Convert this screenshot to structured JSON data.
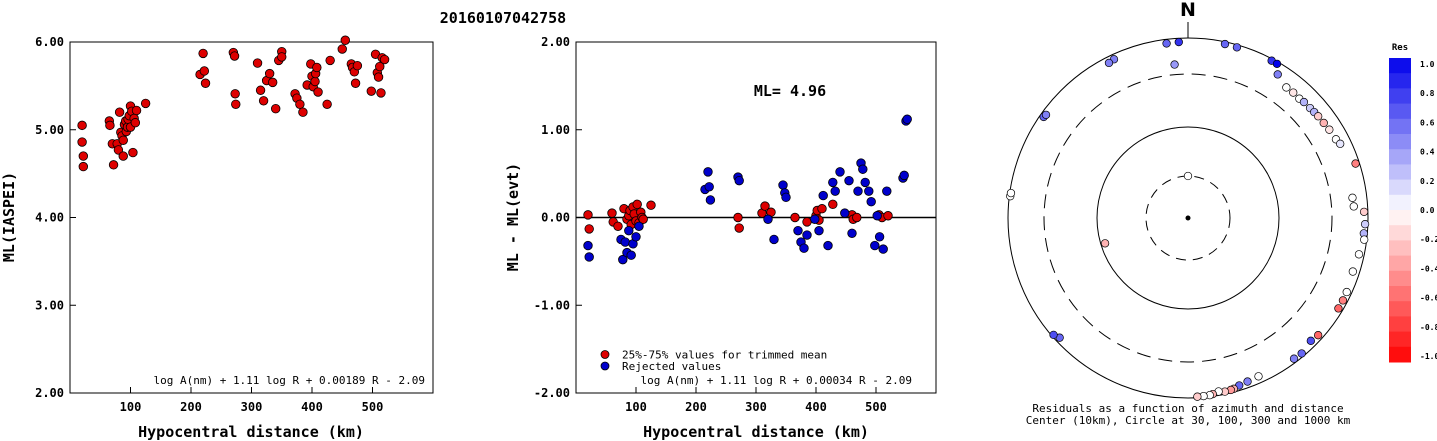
{
  "title": "20160107042758",
  "colors": {
    "inlier": "#dd0000",
    "rejected": "#0000cc",
    "axis": "#000000"
  },
  "chart_data": [
    {
      "type": "scatter",
      "xlabel": "Hypocentral distance (km)",
      "ylabel": "ML(IASPEI)",
      "xlim": [
        0,
        600
      ],
      "ylim": [
        2.0,
        6.0
      ],
      "xticks": [
        "100",
        "200",
        "300",
        "400",
        "500"
      ],
      "yticks": [
        "2.00",
        "3.00",
        "4.00",
        "5.00",
        "6.00"
      ],
      "formula": "log A(nm) + 1.11 log R + 0.00189 R - 2.09",
      "series": [
        {
          "points": [
            [
              20,
              5.05
            ],
            [
              20,
              4.86
            ],
            [
              22,
              4.7
            ],
            [
              22,
              4.58
            ],
            [
              65,
              5.1
            ],
            [
              66,
              5.05
            ],
            [
              70,
              4.84
            ],
            [
              72,
              4.6
            ],
            [
              78,
              4.84
            ],
            [
              80,
              4.77
            ],
            [
              82,
              5.2
            ],
            [
              84,
              4.97
            ],
            [
              86,
              4.93
            ],
            [
              88,
              4.88
            ],
            [
              88,
              4.7
            ],
            [
              90,
              5.06
            ],
            [
              92,
              5.1
            ],
            [
              93,
              4.98
            ],
            [
              95,
              5.03
            ],
            [
              96,
              5.12
            ],
            [
              98,
              5.16
            ],
            [
              100,
              5.27
            ],
            [
              100,
              5.03
            ],
            [
              102,
              5.21
            ],
            [
              104,
              4.74
            ],
            [
              106,
              5.13
            ],
            [
              108,
              5.08
            ],
            [
              110,
              5.22
            ],
            [
              125,
              5.3
            ],
            [
              215,
              5.63
            ],
            [
              220,
              5.87
            ],
            [
              222,
              5.67
            ],
            [
              224,
              5.53
            ],
            [
              270,
              5.88
            ],
            [
              272,
              5.84
            ],
            [
              273,
              5.41
            ],
            [
              274,
              5.29
            ],
            [
              310,
              5.76
            ],
            [
              315,
              5.45
            ],
            [
              320,
              5.33
            ],
            [
              325,
              5.56
            ],
            [
              330,
              5.64
            ],
            [
              335,
              5.54
            ],
            [
              340,
              5.24
            ],
            [
              345,
              5.79
            ],
            [
              350,
              5.89
            ],
            [
              350,
              5.83
            ],
            [
              372,
              5.41
            ],
            [
              375,
              5.36
            ],
            [
              380,
              5.29
            ],
            [
              385,
              5.2
            ],
            [
              392,
              5.51
            ],
            [
              398,
              5.75
            ],
            [
              400,
              5.61
            ],
            [
              402,
              5.49
            ],
            [
              405,
              5.55
            ],
            [
              406,
              5.64
            ],
            [
              408,
              5.71
            ],
            [
              410,
              5.43
            ],
            [
              425,
              5.29
            ],
            [
              430,
              5.79
            ],
            [
              450,
              5.92
            ],
            [
              455,
              6.02
            ],
            [
              465,
              5.75
            ],
            [
              467,
              5.71
            ],
            [
              470,
              5.66
            ],
            [
              472,
              5.53
            ],
            [
              475,
              5.73
            ],
            [
              498,
              5.44
            ],
            [
              505,
              5.86
            ],
            [
              508,
              5.65
            ],
            [
              510,
              5.6
            ],
            [
              512,
              5.72
            ],
            [
              514,
              5.42
            ],
            [
              516,
              5.82
            ],
            [
              520,
              5.8
            ]
          ]
        }
      ]
    },
    {
      "type": "scatter",
      "xlabel": "Hypocentral distance (km)",
      "ylabel": "ML - ML(evt)",
      "xlim": [
        0,
        600
      ],
      "ylim": [
        -2.0,
        2.0
      ],
      "xticks": [
        "100",
        "200",
        "300",
        "400",
        "500"
      ],
      "yticks": [
        "-2.00",
        "-1.00",
        "0.00",
        "1.00",
        "2.00"
      ],
      "annotation": "ML= 4.96",
      "formula": "log A(nm) + 1.11 log R + 0.00034 R - 2.09",
      "series": [
        {
          "name": "25%-75% values for trimmed mean",
          "points": [
            [
              20,
              0.03
            ],
            [
              22,
              -0.13
            ],
            [
              60,
              0.05
            ],
            [
              62,
              -0.05
            ],
            [
              70,
              -0.1
            ],
            [
              80,
              0.1
            ],
            [
              85,
              -0.02
            ],
            [
              88,
              0.02
            ],
            [
              90,
              0.08
            ],
            [
              92,
              -0.08
            ],
            [
              95,
              0.12
            ],
            [
              97,
              0.04
            ],
            [
              100,
              -0.04
            ],
            [
              102,
              0.15
            ],
            [
              105,
              -0.06
            ],
            [
              108,
              0.06
            ],
            [
              110,
              0.0
            ],
            [
              112,
              -0.02
            ],
            [
              125,
              0.14
            ],
            [
              270,
              0.0
            ],
            [
              272,
              -0.12
            ],
            [
              310,
              0.05
            ],
            [
              315,
              0.13
            ],
            [
              325,
              0.06
            ],
            [
              365,
              0.0
            ],
            [
              385,
              -0.05
            ],
            [
              400,
              0.02
            ],
            [
              402,
              0.08
            ],
            [
              405,
              -0.03
            ],
            [
              410,
              0.1
            ],
            [
              428,
              0.15
            ],
            [
              460,
              0.03
            ],
            [
              462,
              -0.02
            ],
            [
              468,
              0.0
            ],
            [
              505,
              0.03
            ],
            [
              510,
              0.0
            ],
            [
              520,
              0.02
            ]
          ]
        },
        {
          "name": "Rejected values",
          "points": [
            [
              20,
              -0.32
            ],
            [
              22,
              -0.45
            ],
            [
              75,
              -0.25
            ],
            [
              78,
              -0.48
            ],
            [
              82,
              -0.28
            ],
            [
              85,
              -0.4
            ],
            [
              88,
              -0.15
            ],
            [
              92,
              -0.43
            ],
            [
              95,
              -0.3
            ],
            [
              100,
              -0.22
            ],
            [
              105,
              -0.1
            ],
            [
              215,
              0.32
            ],
            [
              220,
              0.52
            ],
            [
              222,
              0.35
            ],
            [
              224,
              0.2
            ],
            [
              270,
              0.46
            ],
            [
              272,
              0.42
            ],
            [
              320,
              -0.02
            ],
            [
              330,
              -0.25
            ],
            [
              345,
              0.37
            ],
            [
              348,
              0.28
            ],
            [
              350,
              0.23
            ],
            [
              370,
              -0.15
            ],
            [
              375,
              -0.28
            ],
            [
              380,
              -0.35
            ],
            [
              385,
              -0.2
            ],
            [
              398,
              -0.02
            ],
            [
              405,
              -0.15
            ],
            [
              412,
              0.25
            ],
            [
              420,
              -0.32
            ],
            [
              428,
              0.4
            ],
            [
              432,
              0.3
            ],
            [
              440,
              0.52
            ],
            [
              448,
              0.05
            ],
            [
              455,
              0.42
            ],
            [
              460,
              -0.18
            ],
            [
              470,
              0.3
            ],
            [
              475,
              0.62
            ],
            [
              478,
              0.55
            ],
            [
              482,
              0.4
            ],
            [
              488,
              0.3
            ],
            [
              492,
              0.18
            ],
            [
              498,
              -0.32
            ],
            [
              502,
              0.02
            ],
            [
              506,
              -0.22
            ],
            [
              512,
              -0.36
            ],
            [
              518,
              0.3
            ],
            [
              545,
              0.45
            ],
            [
              547,
              0.48
            ],
            [
              550,
              1.1
            ],
            [
              552,
              1.12
            ]
          ]
        }
      ]
    }
  ],
  "polar": {
    "north_label": "N",
    "caption_line1": "Residuals as a function of azimuth and distance",
    "caption_line2": "Center (10km), Circle at 30, 100, 300 and 1000 km",
    "rings_km": [
      30,
      100,
      300,
      1000
    ],
    "stations": [
      {
        "az": 12,
        "dist_km": 930,
        "res": 0.6
      },
      {
        "az": 16,
        "dist_km": 920,
        "res": 0.6
      },
      {
        "az": 28,
        "dist_km": 940,
        "res": 0.8
      },
      {
        "az": 30,
        "dist_km": 935,
        "res": 1.0
      },
      {
        "az": 353,
        "dist_km": 870,
        "res": 0.6
      },
      {
        "az": 357,
        "dist_km": 880,
        "res": 0.8
      },
      {
        "az": 335,
        "dist_km": 850,
        "res": 0.5
      },
      {
        "az": 333,
        "dist_km": 820,
        "res": 0.5
      },
      {
        "az": 305,
        "dist_km": 880,
        "res": 0.6
      },
      {
        "az": 306,
        "dist_km": 860,
        "res": 0.5
      },
      {
        "az": 355,
        "dist_km": 420,
        "res": 0.4
      },
      {
        "az": 32,
        "dist_km": 700,
        "res": 0.5
      },
      {
        "az": 37,
        "dist_km": 575,
        "res": 0.0
      },
      {
        "az": 40,
        "dist_km": 580,
        "res": -0.1
      },
      {
        "az": 43,
        "dist_km": 570,
        "res": 0.0
      },
      {
        "az": 45,
        "dist_km": 585,
        "res": 0.3
      },
      {
        "az": 48,
        "dist_km": 590,
        "res": 0.2
      },
      {
        "az": 50,
        "dist_km": 600,
        "res": 0.3
      },
      {
        "az": 52,
        "dist_km": 610,
        "res": -0.2
      },
      {
        "az": 55,
        "dist_km": 620,
        "res": -0.3
      },
      {
        "az": 58,
        "dist_km": 640,
        "res": -0.1
      },
      {
        "az": 62,
        "dist_km": 660,
        "res": 0.0
      },
      {
        "az": 64,
        "dist_km": 700,
        "res": 0.1
      },
      {
        "az": 72,
        "dist_km": 880,
        "res": -0.5
      },
      {
        "az": 83,
        "dist_km": 620,
        "res": 0.0
      },
      {
        "az": 86,
        "dist_km": 630,
        "res": 0.0
      },
      {
        "az": 88,
        "dist_km": 880,
        "res": -0.2
      },
      {
        "az": 92,
        "dist_km": 910,
        "res": 0.2
      },
      {
        "az": 95,
        "dist_km": 890,
        "res": 0.3
      },
      {
        "az": 97,
        "dist_km": 920,
        "res": 0.0
      },
      {
        "az": 102,
        "dist_km": 840,
        "res": 0.0
      },
      {
        "az": 108,
        "dist_km": 800,
        "res": 0.0
      },
      {
        "az": 115,
        "dist_km": 850,
        "res": 0.0
      },
      {
        "az": 118,
        "dist_km": 860,
        "res": -0.5
      },
      {
        "az": 121,
        "dist_km": 860,
        "res": -0.6
      },
      {
        "az": 132,
        "dist_km": 850,
        "res": -0.6
      },
      {
        "az": 135,
        "dist_km": 810,
        "res": 0.7
      },
      {
        "az": 140,
        "dist_km": 900,
        "res": 0.6
      },
      {
        "az": 143,
        "dist_km": 880,
        "res": 0.5
      },
      {
        "az": 156,
        "dist_km": 800,
        "res": 0.0
      },
      {
        "az": 160,
        "dist_km": 820,
        "res": 0.5
      },
      {
        "az": 163,
        "dist_km": 850,
        "res": 0.6
      },
      {
        "az": 165,
        "dist_km": 900,
        "res": -0.3
      },
      {
        "az": 166,
        "dist_km": 910,
        "res": -0.4
      },
      {
        "az": 168,
        "dist_km": 920,
        "res": -0.2
      },
      {
        "az": 170,
        "dist_km": 880,
        "res": 0.0
      },
      {
        "az": 172,
        "dist_km": 930,
        "res": -0.3
      },
      {
        "az": 173,
        "dist_km": 950,
        "res": 0.0
      },
      {
        "az": 175,
        "dist_km": 960,
        "res": 0.0
      },
      {
        "az": 177,
        "dist_km": 965,
        "res": -0.2
      },
      {
        "az": 227,
        "dist_km": 860,
        "res": 0.6
      },
      {
        "az": 229,
        "dist_km": 940,
        "res": 0.7
      },
      {
        "az": 253,
        "dist_km": 90,
        "res": -0.3
      },
      {
        "az": 277,
        "dist_km": 970,
        "res": 0.0
      },
      {
        "az": 278,
        "dist_km": 960,
        "res": 0.0
      },
      {
        "az": 0,
        "dist_km": 30,
        "res": 0.0
      }
    ]
  },
  "colorbar": {
    "title": "Res",
    "labels": [
      "1.0",
      "0.8",
      "0.6",
      "0.4",
      "0.2",
      "0.0",
      "-0.2",
      "-0.4",
      "-0.6",
      "-0.8",
      "-1.0"
    ]
  }
}
